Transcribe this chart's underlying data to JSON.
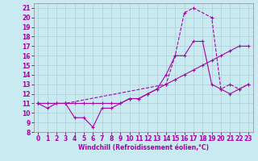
{
  "background_color": "#c8eaf0",
  "grid_color": "#b0ccd8",
  "line_color": "#aa00aa",
  "xlim": [
    -0.5,
    23.5
  ],
  "ylim": [
    8,
    21.5
  ],
  "yticks": [
    8,
    9,
    10,
    11,
    12,
    13,
    14,
    15,
    16,
    17,
    18,
    19,
    20,
    21
  ],
  "xticks": [
    0,
    1,
    2,
    3,
    4,
    5,
    6,
    7,
    8,
    9,
    10,
    11,
    12,
    13,
    14,
    15,
    16,
    17,
    18,
    19,
    20,
    21,
    22,
    23
  ],
  "xlabel": "Windchill (Refroidissement éolien,°C)",
  "s1_x": [
    0,
    1,
    2,
    3,
    4,
    5,
    6,
    7,
    8,
    9,
    10,
    11,
    12,
    13,
    14,
    15,
    16,
    17,
    18,
    19,
    20,
    21,
    22,
    23
  ],
  "s1_y": [
    11,
    10.5,
    11,
    11,
    9.5,
    9.5,
    8.5,
    10.5,
    10.5,
    11,
    11.5,
    11.5,
    12,
    12.5,
    14,
    16,
    16,
    17.5,
    17.5,
    13,
    12.5,
    12,
    12.5,
    13
  ],
  "s2_x": [
    0,
    1,
    2,
    3,
    4,
    5,
    6,
    7,
    8,
    9,
    10,
    11,
    12,
    13,
    14,
    15,
    16,
    17,
    18,
    19,
    20,
    21,
    22,
    23
  ],
  "s2_y": [
    11,
    11,
    11,
    11,
    11,
    11,
    11,
    11,
    11,
    11,
    11.5,
    11.5,
    12,
    12.5,
    13,
    13.5,
    14,
    14.5,
    15,
    15.5,
    16,
    16.5,
    17,
    17
  ],
  "s3_x": [
    0,
    3,
    14,
    15,
    16,
    17,
    19,
    20,
    21,
    22,
    23
  ],
  "s3_y": [
    11,
    11,
    13,
    16,
    20.5,
    21,
    20,
    12.5,
    13,
    12.5,
    13
  ],
  "tick_fontsize": 5.5,
  "xlabel_fontsize": 5.5
}
